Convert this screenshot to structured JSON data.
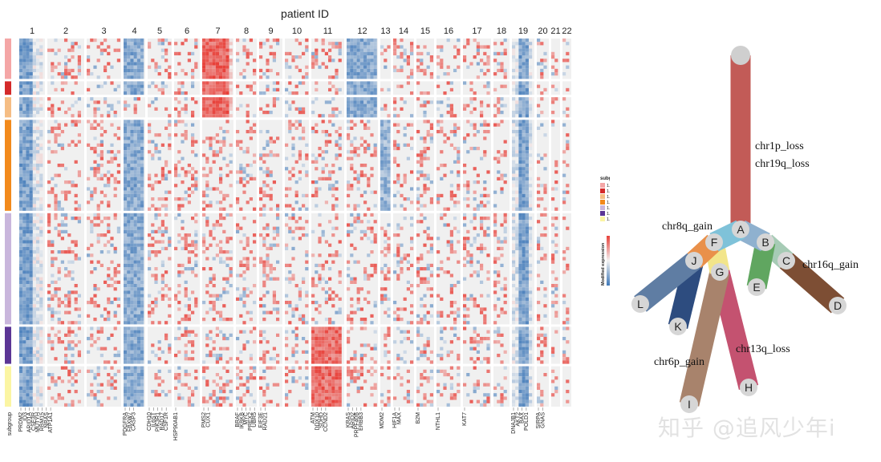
{
  "chart_data": [
    {
      "type": "heatmap",
      "title": "patient ID",
      "chromosomes": [
        "1",
        "2",
        "3",
        "4",
        "5",
        "6",
        "7",
        "8",
        "9",
        "10",
        "11",
        "12",
        "13",
        "14",
        "15",
        "16",
        "17",
        "18",
        "19",
        "20",
        "21",
        "22"
      ],
      "row_axis_label": "subgroup",
      "gene_labels": [
        [
          "PRDM2",
          "ID3",
          "ARID1A",
          "CSF3R",
          "MUTYH",
          "RBM15",
          "NRAS",
          "ATP1A1"
        ],
        [],
        [],
        [
          "PDGFRA",
          "FBXW7",
          "CASP3"
        ],
        [
          "CDH10",
          "IL6ST",
          "PIK3R1",
          "RAD17",
          "CSF1R"
        ],
        [
          "HSP90AB1"
        ],
        [
          "PMS2",
          "CUX1"
        ],
        [
          "BRAF",
          "IKBKB",
          "MYC",
          "PREX2",
          "UBR5"
        ],
        [
          "EIF3E",
          "RAD21"
        ],
        [],
        [
          "ATM",
          "DDX10",
          "SDHD",
          "CCND2"
        ],
        [
          "KRAS",
          "ARID2",
          "PRPF40B",
          "ERBB3"
        ],
        [
          "MDM2"
        ],
        [
          "HIF1A",
          "MAX"
        ],
        [
          "B2M"
        ],
        [
          "NTHL1"
        ],
        [
          "KAT7"
        ],
        [],
        [
          "DNAJB1",
          "AKT2",
          "BAX",
          "POLD1"
        ],
        [
          "SIRPA",
          "GNAS"
        ],
        [],
        []
      ],
      "legend_subgroup": {
        "title": "subgroup",
        "entries": [
          {
            "label": "1.1.1.1",
            "color": "#f4a6a6"
          },
          {
            "label": "1.1.1.2",
            "color": "#d42a2a"
          },
          {
            "label": "1.1.2",
            "color": "#f5bd84"
          },
          {
            "label": "1.2.1.1",
            "color": "#f28a1c"
          },
          {
            "label": "1.2.1.2",
            "color": "#c9b6dc"
          },
          {
            "label": "1.2.2.1",
            "color": "#5b3595"
          },
          {
            "label": "1.2.2.2",
            "color": "#fbf5a3"
          }
        ]
      },
      "legend_expression": {
        "title": "Modified expression",
        "max": "1.6",
        "mid": "1",
        "min": "0.4",
        "colors": {
          "high": "#e8413a",
          "mid": "#f2f2f2",
          "low": "#3f78b8"
        }
      }
    },
    {
      "type": "tree",
      "nodes": [
        "A",
        "B",
        "C",
        "D",
        "E",
        "F",
        "G",
        "H",
        "I",
        "J",
        "K",
        "L"
      ],
      "edges": [
        {
          "from": "root",
          "to": "A",
          "color": "#c25b57"
        },
        {
          "from": "A",
          "to": "B",
          "color": "#8fb1cf"
        },
        {
          "from": "B",
          "to": "C",
          "color": "#a6cbb5"
        },
        {
          "from": "C",
          "to": "D",
          "color": "#7d4e34"
        },
        {
          "from": "B",
          "to": "E",
          "color": "#60a660"
        },
        {
          "from": "A",
          "to": "F",
          "color": "#7fc2d9"
        },
        {
          "from": "F",
          "to": "J",
          "color": "#e9904a"
        },
        {
          "from": "J",
          "to": "L",
          "color": "#5f7da3"
        },
        {
          "from": "J",
          "to": "K",
          "color": "#2d4c7f"
        },
        {
          "from": "F",
          "to": "G",
          "color": "#f2e58a"
        },
        {
          "from": "G",
          "to": "I",
          "color": "#a8836c"
        },
        {
          "from": "G",
          "to": "H",
          "color": "#c45270"
        }
      ],
      "annotations": [
        {
          "edge": "root-A",
          "text": [
            "chr1p_loss",
            "chr19q_loss"
          ]
        },
        {
          "edge": "A-F",
          "text": [
            "chr8q_gain"
          ]
        },
        {
          "edge": "C-D",
          "text": [
            "chr16q_gain"
          ]
        },
        {
          "edge": "G-I",
          "text": [
            "chr6p_gain"
          ]
        },
        {
          "edge": "G-H",
          "text": [
            "chr13q_loss"
          ]
        }
      ]
    }
  ],
  "watermark": "知乎 @追风少年i"
}
